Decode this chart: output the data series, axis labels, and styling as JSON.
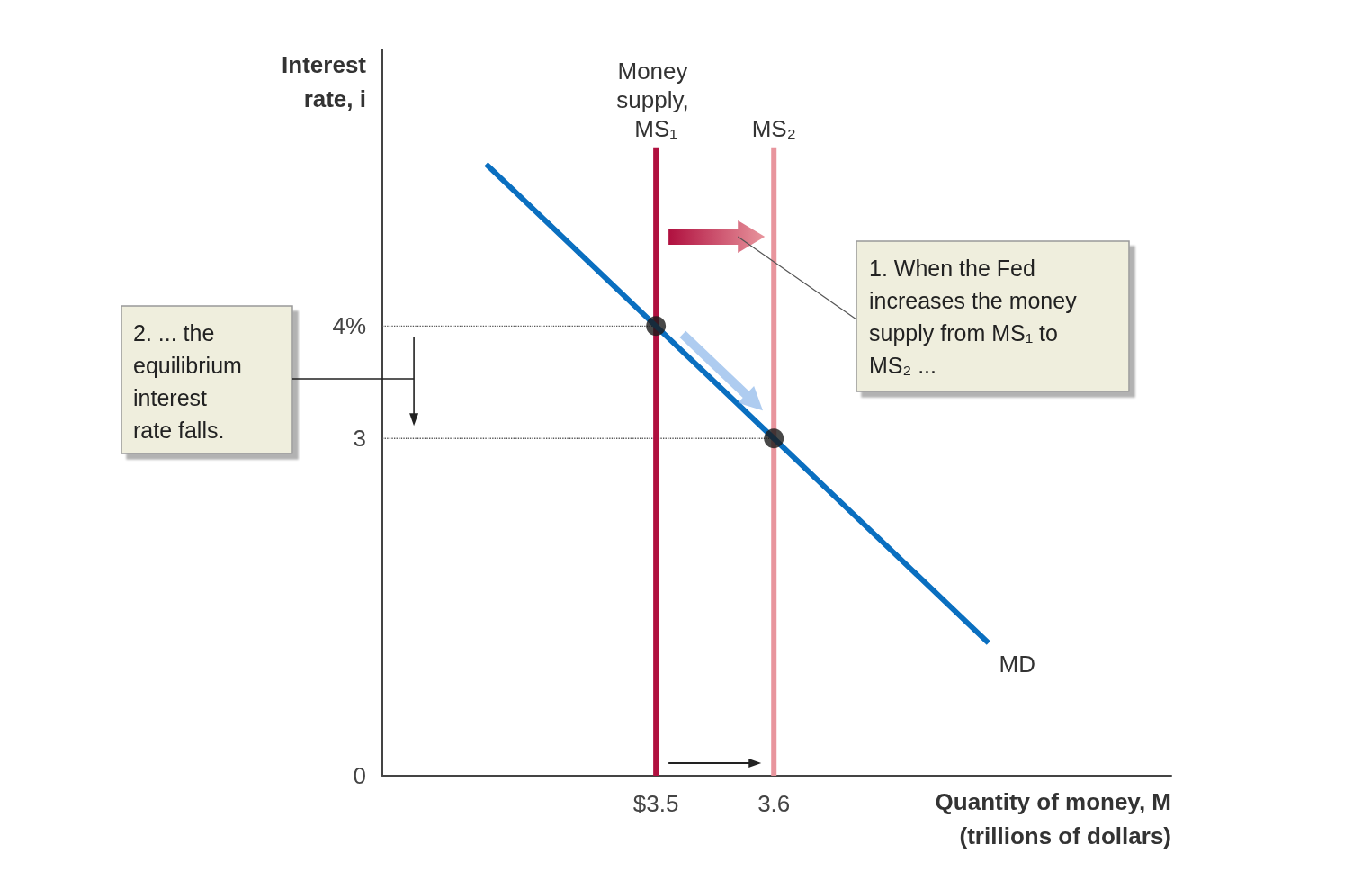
{
  "chart_data": {
    "type": "line",
    "xlabel": "Quantity of money, M\n(trillions of dollars)",
    "ylabel": "Interest\nrate, i",
    "xlim": [
      3.268,
      3.937
    ],
    "ylim": [
      0,
      6.46
    ],
    "xticks": [
      {
        "value": 3.5,
        "label": "$3.5"
      },
      3.6
    ],
    "yticks": [
      0,
      3,
      {
        "value": 4,
        "label": "4%"
      }
    ],
    "grid": false,
    "legend": false,
    "marker": "none",
    "line_style": "solid",
    "series": [
      {
        "color": "#555555",
        "line_style": "dotted",
        "x": [
          3.268,
          3.5
        ],
        "values": [
          4,
          4
        ]
      },
      {
        "color": "#555555",
        "line_style": "dotted",
        "x": [
          3.268,
          3.6
        ],
        "values": [
          3,
          3
        ]
      },
      {
        "name": "Money supply, MS₁",
        "color": "#b0103f",
        "x": [
          3.5,
          3.5
        ],
        "values": [
          0,
          5.59
        ]
      },
      {
        "name": "MS₂",
        "color": "#e8959d",
        "x": [
          3.6,
          3.6
        ],
        "values": [
          0,
          5.59
        ]
      },
      {
        "name": "MD",
        "color": "#0a6fc0",
        "x": [
          3.356,
          3.5,
          3.6,
          3.782
        ],
        "values": [
          5.44,
          4,
          3,
          1.18
        ]
      },
      {
        "type": "scatter",
        "marker": "circle",
        "color": "#1a1a1a",
        "x": [
          3.5,
          3.6
        ],
        "values": [
          4,
          3
        ]
      }
    ],
    "annotations": [
      "1. When the Fed increases the money supply from MS₁ to MS₂ ...",
      "2. ... the equilibrium interest rate falls."
    ]
  }
}
